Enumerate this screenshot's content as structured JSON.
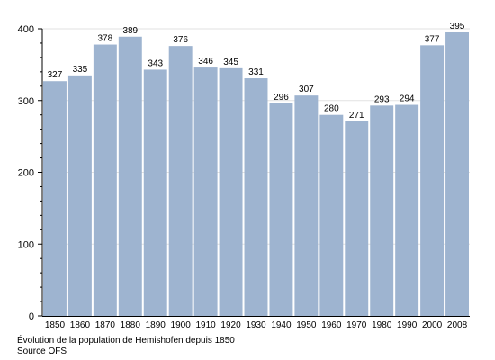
{
  "chart_data": {
    "type": "bar",
    "categories": [
      "1850",
      "1860",
      "1870",
      "1880",
      "1890",
      "1900",
      "1910",
      "1920",
      "1930",
      "1940",
      "1950",
      "1960",
      "1970",
      "1980",
      "1990",
      "2000",
      "2008"
    ],
    "values": [
      327,
      335,
      378,
      389,
      343,
      376,
      346,
      345,
      331,
      296,
      307,
      280,
      271,
      293,
      294,
      377,
      395
    ],
    "ylim": [
      0,
      400
    ],
    "yticks": [
      "0",
      "100",
      "200",
      "300",
      "400"
    ],
    "grid": true,
    "bar_color": "#9eb4d0",
    "grid_color": "#e2e2e2",
    "title": "",
    "xlabel": "",
    "ylabel": ""
  },
  "caption": {
    "line1": "Évolution de la population de Hemishofen depuis 1850",
    "line2": "Source OFS"
  }
}
